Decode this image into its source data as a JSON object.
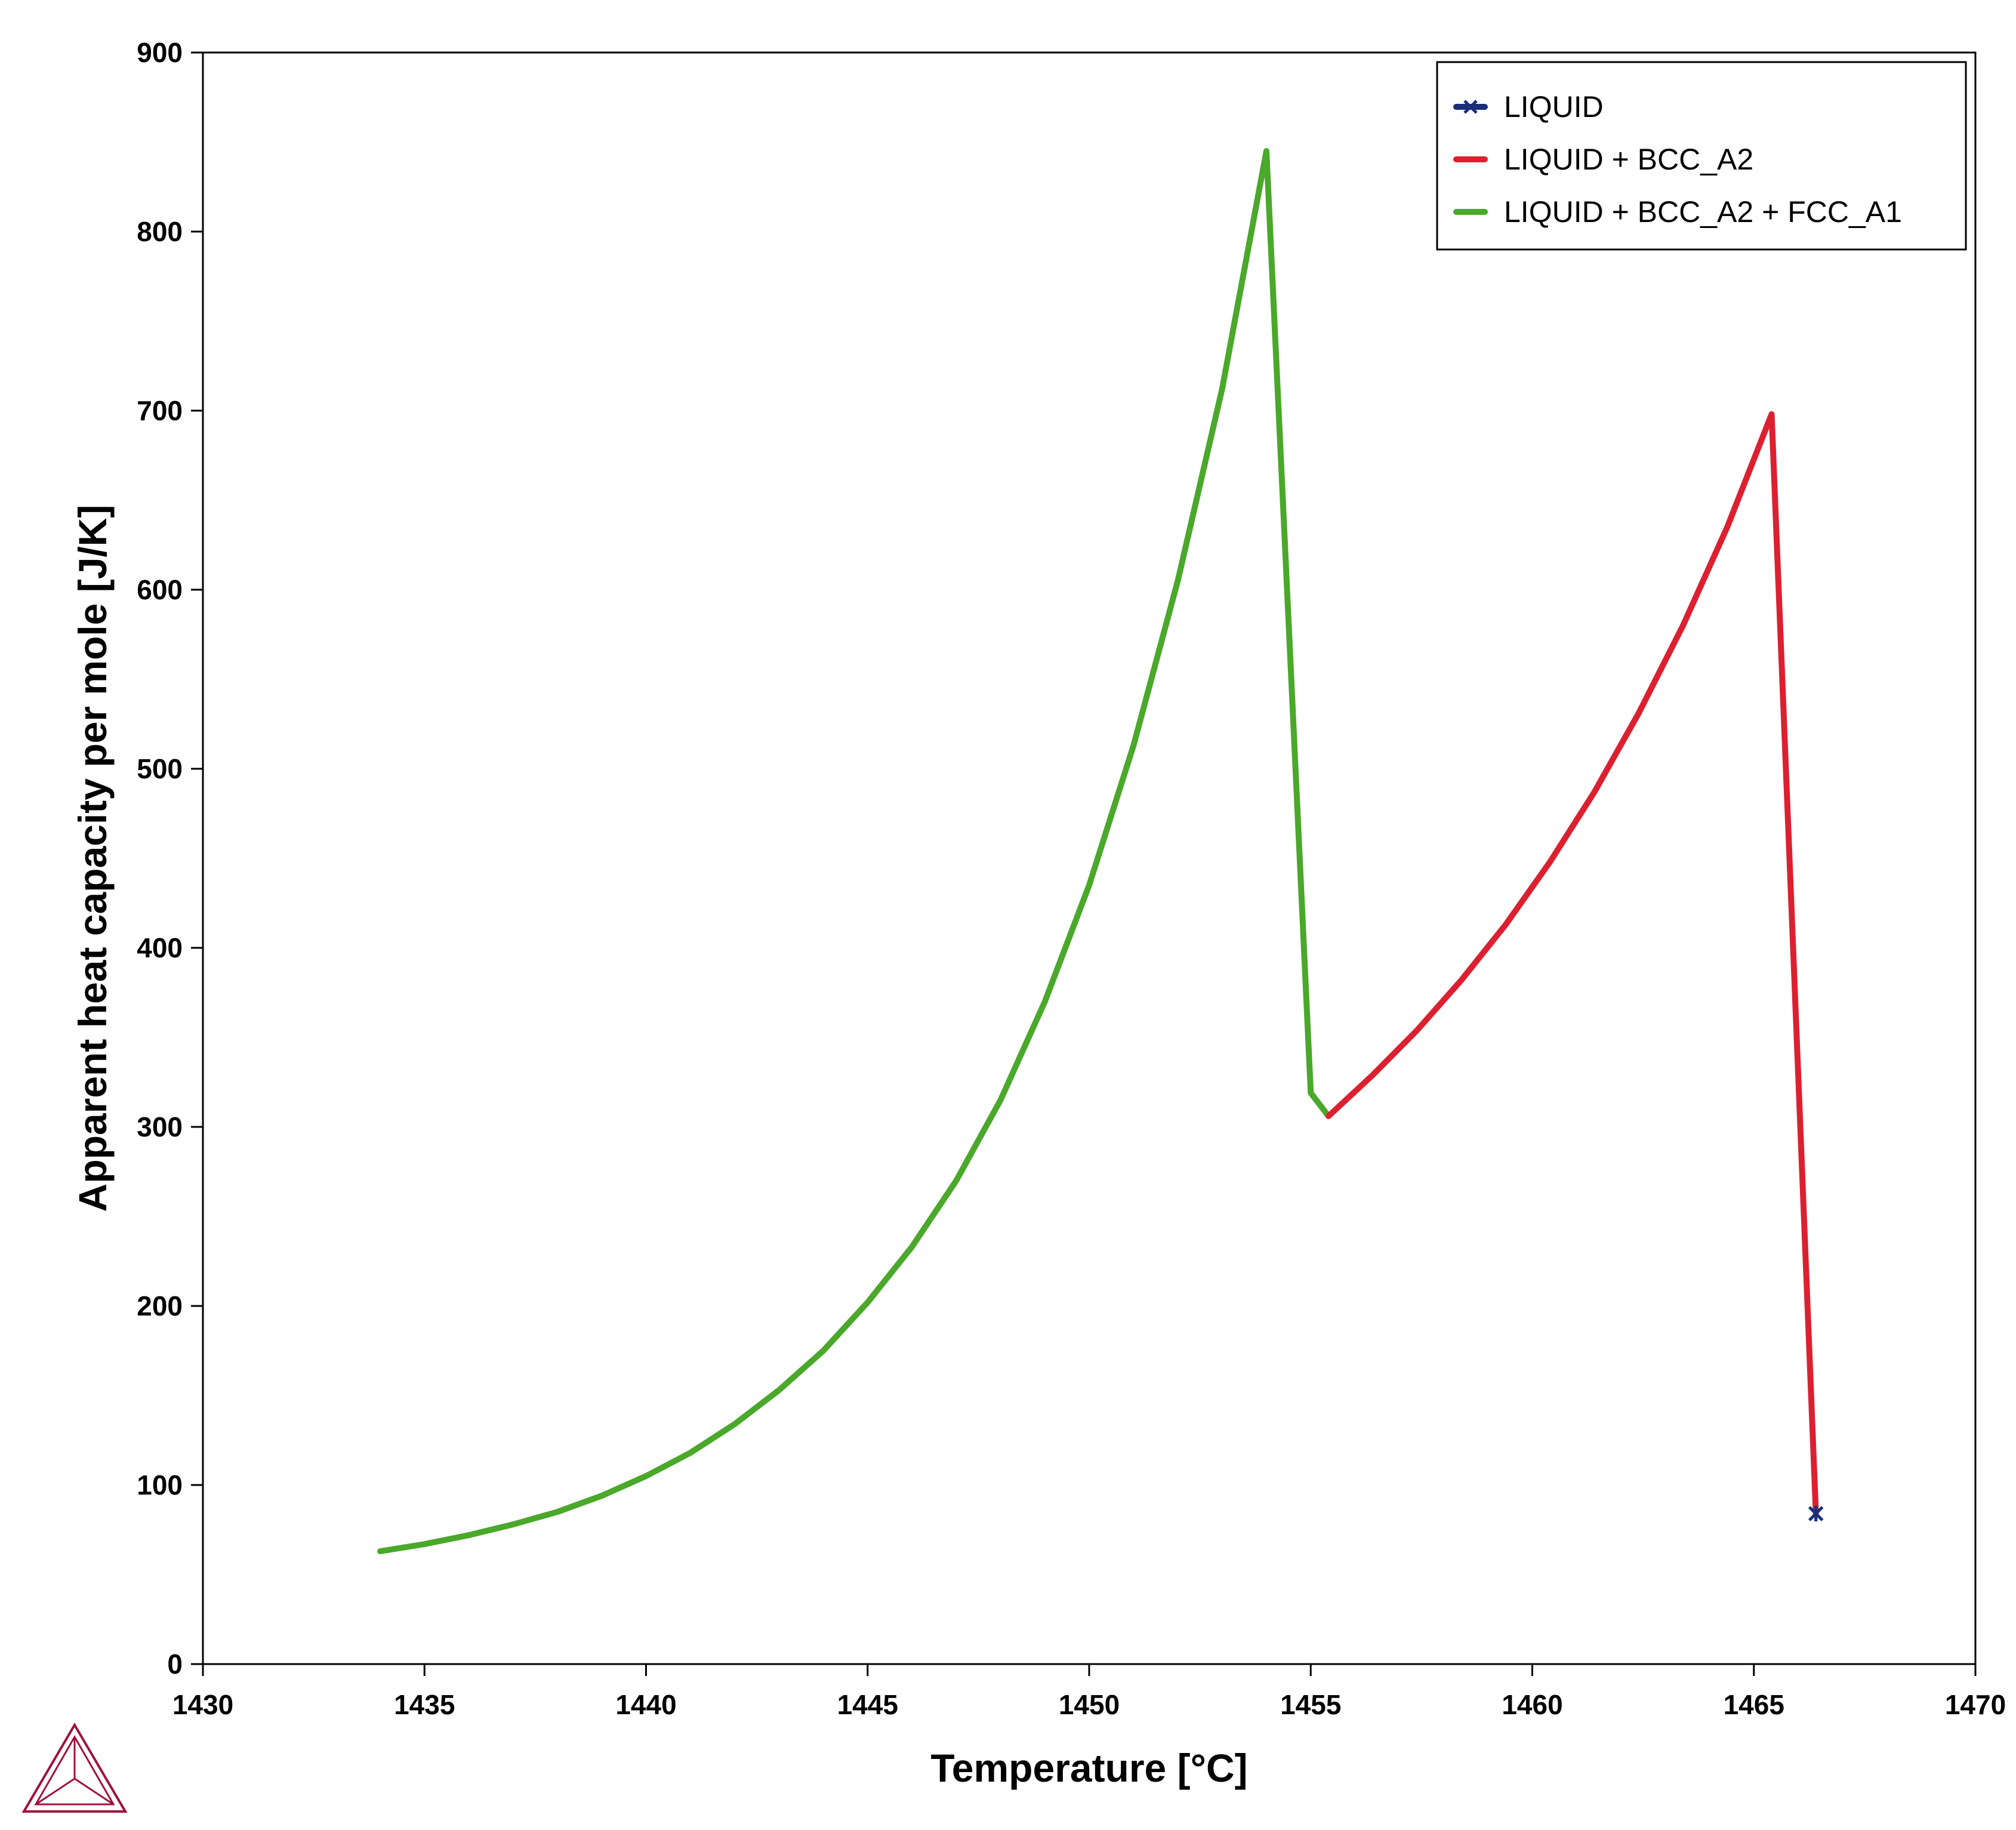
{
  "chart_data": {
    "type": "line",
    "xlabel": "Temperature [°C]",
    "ylabel": "Apparent heat capacity per mole [J/K]",
    "xlim": [
      1430,
      1470
    ],
    "ylim": [
      0,
      900
    ],
    "x_ticks": [
      "1430",
      "1435",
      "1440",
      "1445",
      "1450",
      "1455",
      "1460",
      "1465",
      "1470"
    ],
    "y_ticks": [
      "0",
      "100",
      "200",
      "300",
      "400",
      "500",
      "600",
      "700",
      "800",
      "900"
    ],
    "legend_position": "top-right",
    "series": [
      {
        "name": "LIQUID",
        "color": "#1a2f7a",
        "marker": "star",
        "x": [
          1466.4
        ],
        "y": [
          84
        ]
      },
      {
        "name": "LIQUID + BCC_A2",
        "color": "#dc2030",
        "x": [
          1455.4,
          1456.4,
          1457.4,
          1458.4,
          1459.4,
          1460.4,
          1461.4,
          1462.4,
          1463.4,
          1464.4,
          1465.4,
          1466.4
        ],
        "y": [
          306,
          329,
          354,
          382,
          413,
          448,
          487,
          531,
          580,
          635,
          698,
          84
        ]
      },
      {
        "name": "LIQUID + BCC_A2 + FCC_A1",
        "color": "#4aa82a",
        "x": [
          1434,
          1435,
          1436,
          1437,
          1438,
          1439,
          1440,
          1441,
          1442,
          1443,
          1444,
          1445,
          1446,
          1447,
          1448,
          1449,
          1450,
          1451,
          1452,
          1453,
          1454,
          1455,
          1455.4
        ],
        "y": [
          63,
          67,
          72,
          78,
          85,
          94,
          105,
          118,
          134,
          153,
          175,
          202,
          233,
          270,
          315,
          370,
          435,
          513,
          605,
          712,
          845,
          319,
          306
        ]
      }
    ]
  },
  "logo": {
    "name": "triangle-logo-icon",
    "color": "#a0103a"
  }
}
